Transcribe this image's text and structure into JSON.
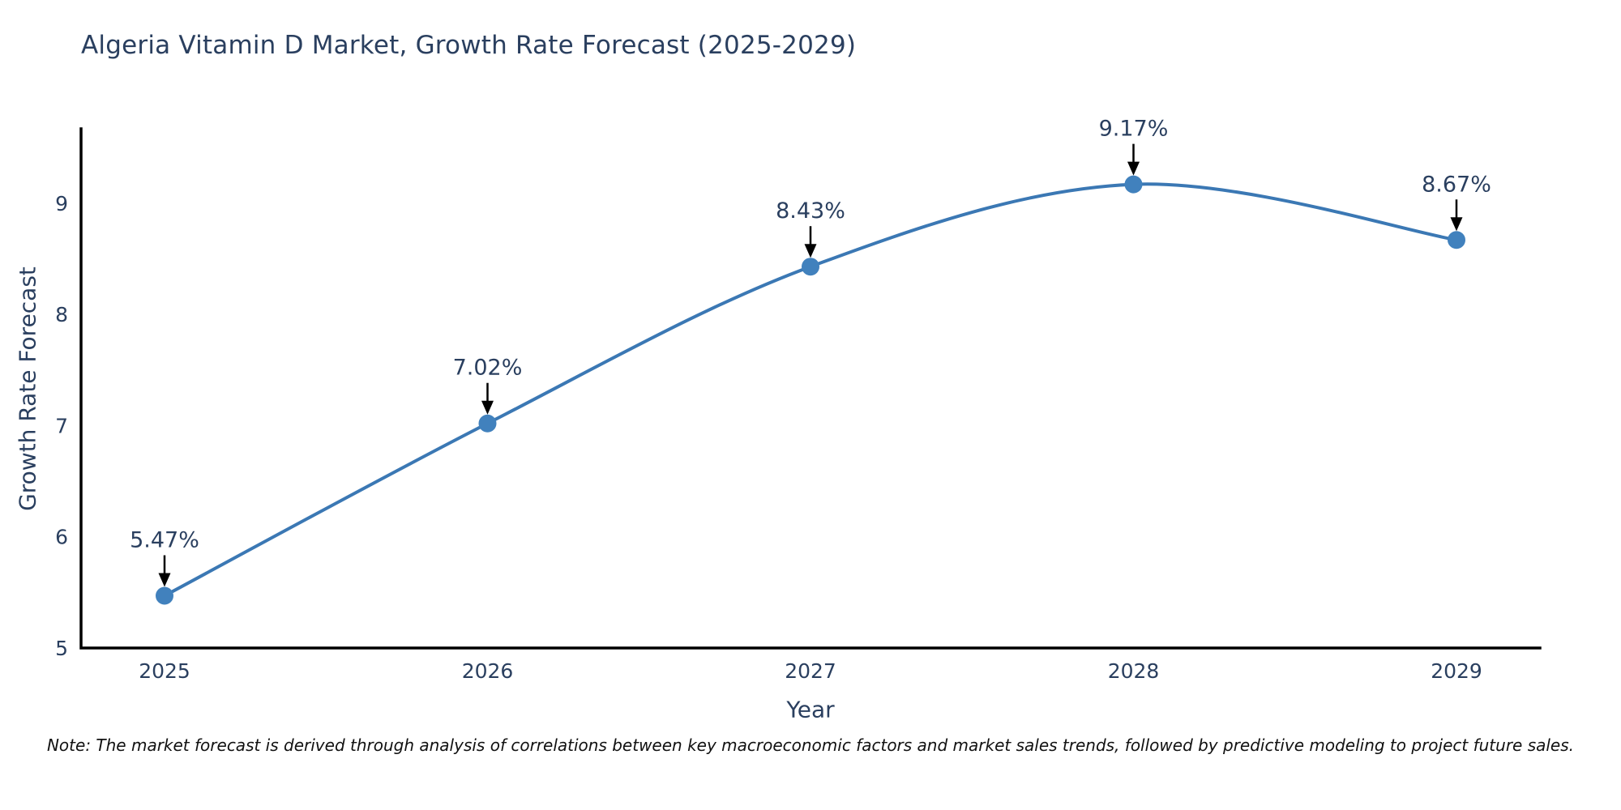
{
  "chart_data": {
    "type": "line",
    "title": "Algeria Vitamin D Market, Growth Rate Forecast (2025-2029)",
    "xlabel": "Year",
    "ylabel": "Growth Rate Forecast",
    "categories": [
      "2025",
      "2026",
      "2027",
      "2028",
      "2029"
    ],
    "series": [
      {
        "name": "Growth Rate Forecast",
        "values": [
          5.47,
          7.02,
          8.43,
          9.17,
          8.67
        ],
        "point_labels": [
          "5.47%",
          "7.02%",
          "8.43%",
          "9.17%",
          "8.67%"
        ]
      }
    ],
    "yticks": [
      5,
      6,
      7,
      8,
      9
    ],
    "ylim": [
      5,
      9.67
    ],
    "grid": false,
    "legend_position": "none",
    "line_shape": "spline",
    "colors": {
      "line": "#3b78b4",
      "marker": "#4181bd",
      "axis": "#000000",
      "annotation_arrow": "#000000",
      "title": "#2a3f5f",
      "tick_label": "#2a3f5f"
    }
  },
  "note": "Note: The market forecast is derived through analysis of correlations between key macroeconomic factors and market sales trends, followed by predictive modeling to project future sales."
}
